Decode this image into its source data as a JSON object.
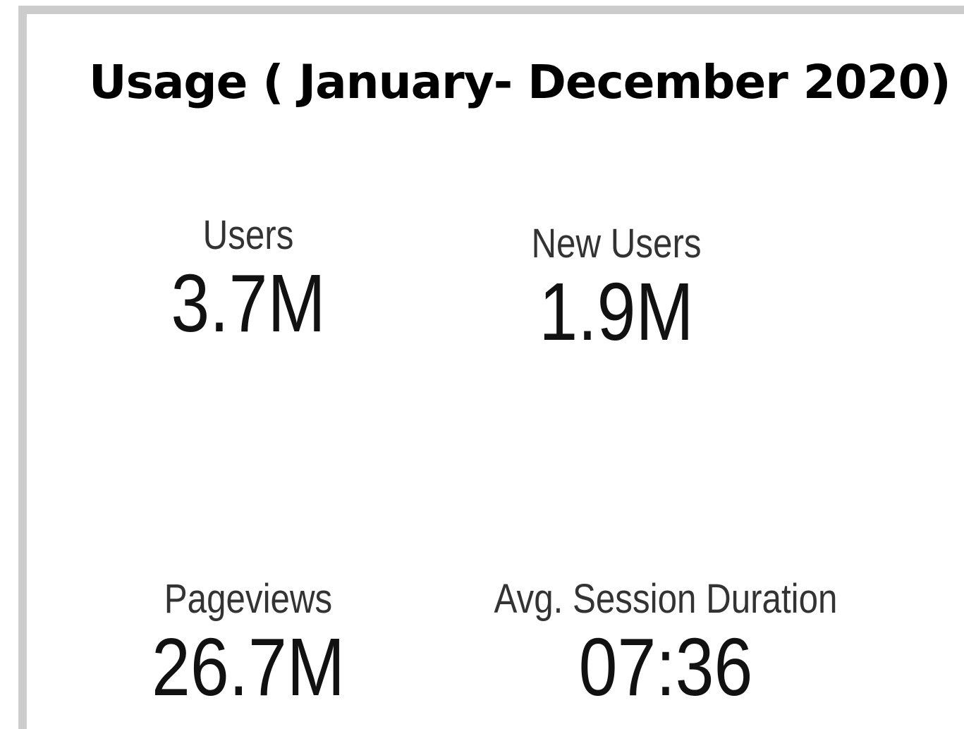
{
  "header": {
    "title": "Usage ( January- December 2020)"
  },
  "metrics": [
    {
      "label": "Users",
      "value": "3.7M"
    },
    {
      "label": "New Users",
      "value": "1.9M"
    },
    {
      "label": "Pageviews",
      "value": "26.7M"
    },
    {
      "label": "Avg. Session Duration",
      "value": "07:36"
    }
  ]
}
